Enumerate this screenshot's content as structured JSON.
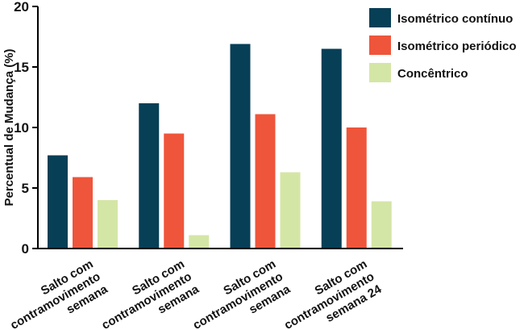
{
  "chart_data": {
    "type": "bar",
    "title": "",
    "xlabel": "",
    "ylabel": "Percentual de Mudança (%)",
    "ylim": [
      0,
      20
    ],
    "yticks": [
      0,
      5,
      10,
      15,
      20
    ],
    "grid": false,
    "legend_position": "top-right",
    "categories": [
      [
        "Salto com",
        "contramovimento",
        "semana"
      ],
      [
        "Salto com",
        "contramovimento",
        "semana"
      ],
      [
        "Salto com",
        "contramovimento",
        "semana"
      ],
      [
        "Salto com",
        "contramovimento",
        "semana 24"
      ]
    ],
    "series": [
      {
        "name": "Isométrico contínuo",
        "color": "#073f57",
        "values": [
          7.7,
          12.0,
          16.9,
          16.5
        ]
      },
      {
        "name": "Isométrico periódico",
        "color": "#ef553b",
        "values": [
          5.9,
          9.5,
          11.1,
          10.0
        ]
      },
      {
        "name": "Concêntrico",
        "color": "#d4e6a6",
        "values": [
          4.0,
          1.1,
          6.3,
          3.9
        ]
      }
    ]
  }
}
